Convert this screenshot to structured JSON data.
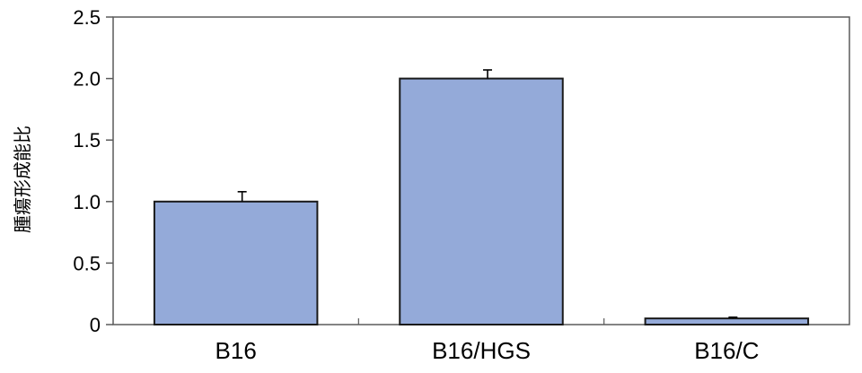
{
  "chart_data": {
    "type": "bar",
    "categories": [
      "B16",
      "B16/HGS",
      "B16/C"
    ],
    "values": [
      1.0,
      2.0,
      0.05
    ],
    "errors": [
      0.08,
      0.07,
      0.01
    ],
    "ylabel": "腫瘍形成能比",
    "xlabel": "",
    "ylim": [
      0,
      2.5
    ],
    "yticks": [
      0,
      0.5,
      1.0,
      1.5,
      2.0,
      2.5
    ],
    "ytick_labels": [
      "0",
      "0.5",
      "1.0",
      "1.5",
      "2.0",
      "2.5"
    ],
    "grid": false,
    "colors": {
      "bar_fill": "#94aad9",
      "bar_stroke": "#1a1a1a",
      "axis": "#5a5a5a"
    }
  }
}
